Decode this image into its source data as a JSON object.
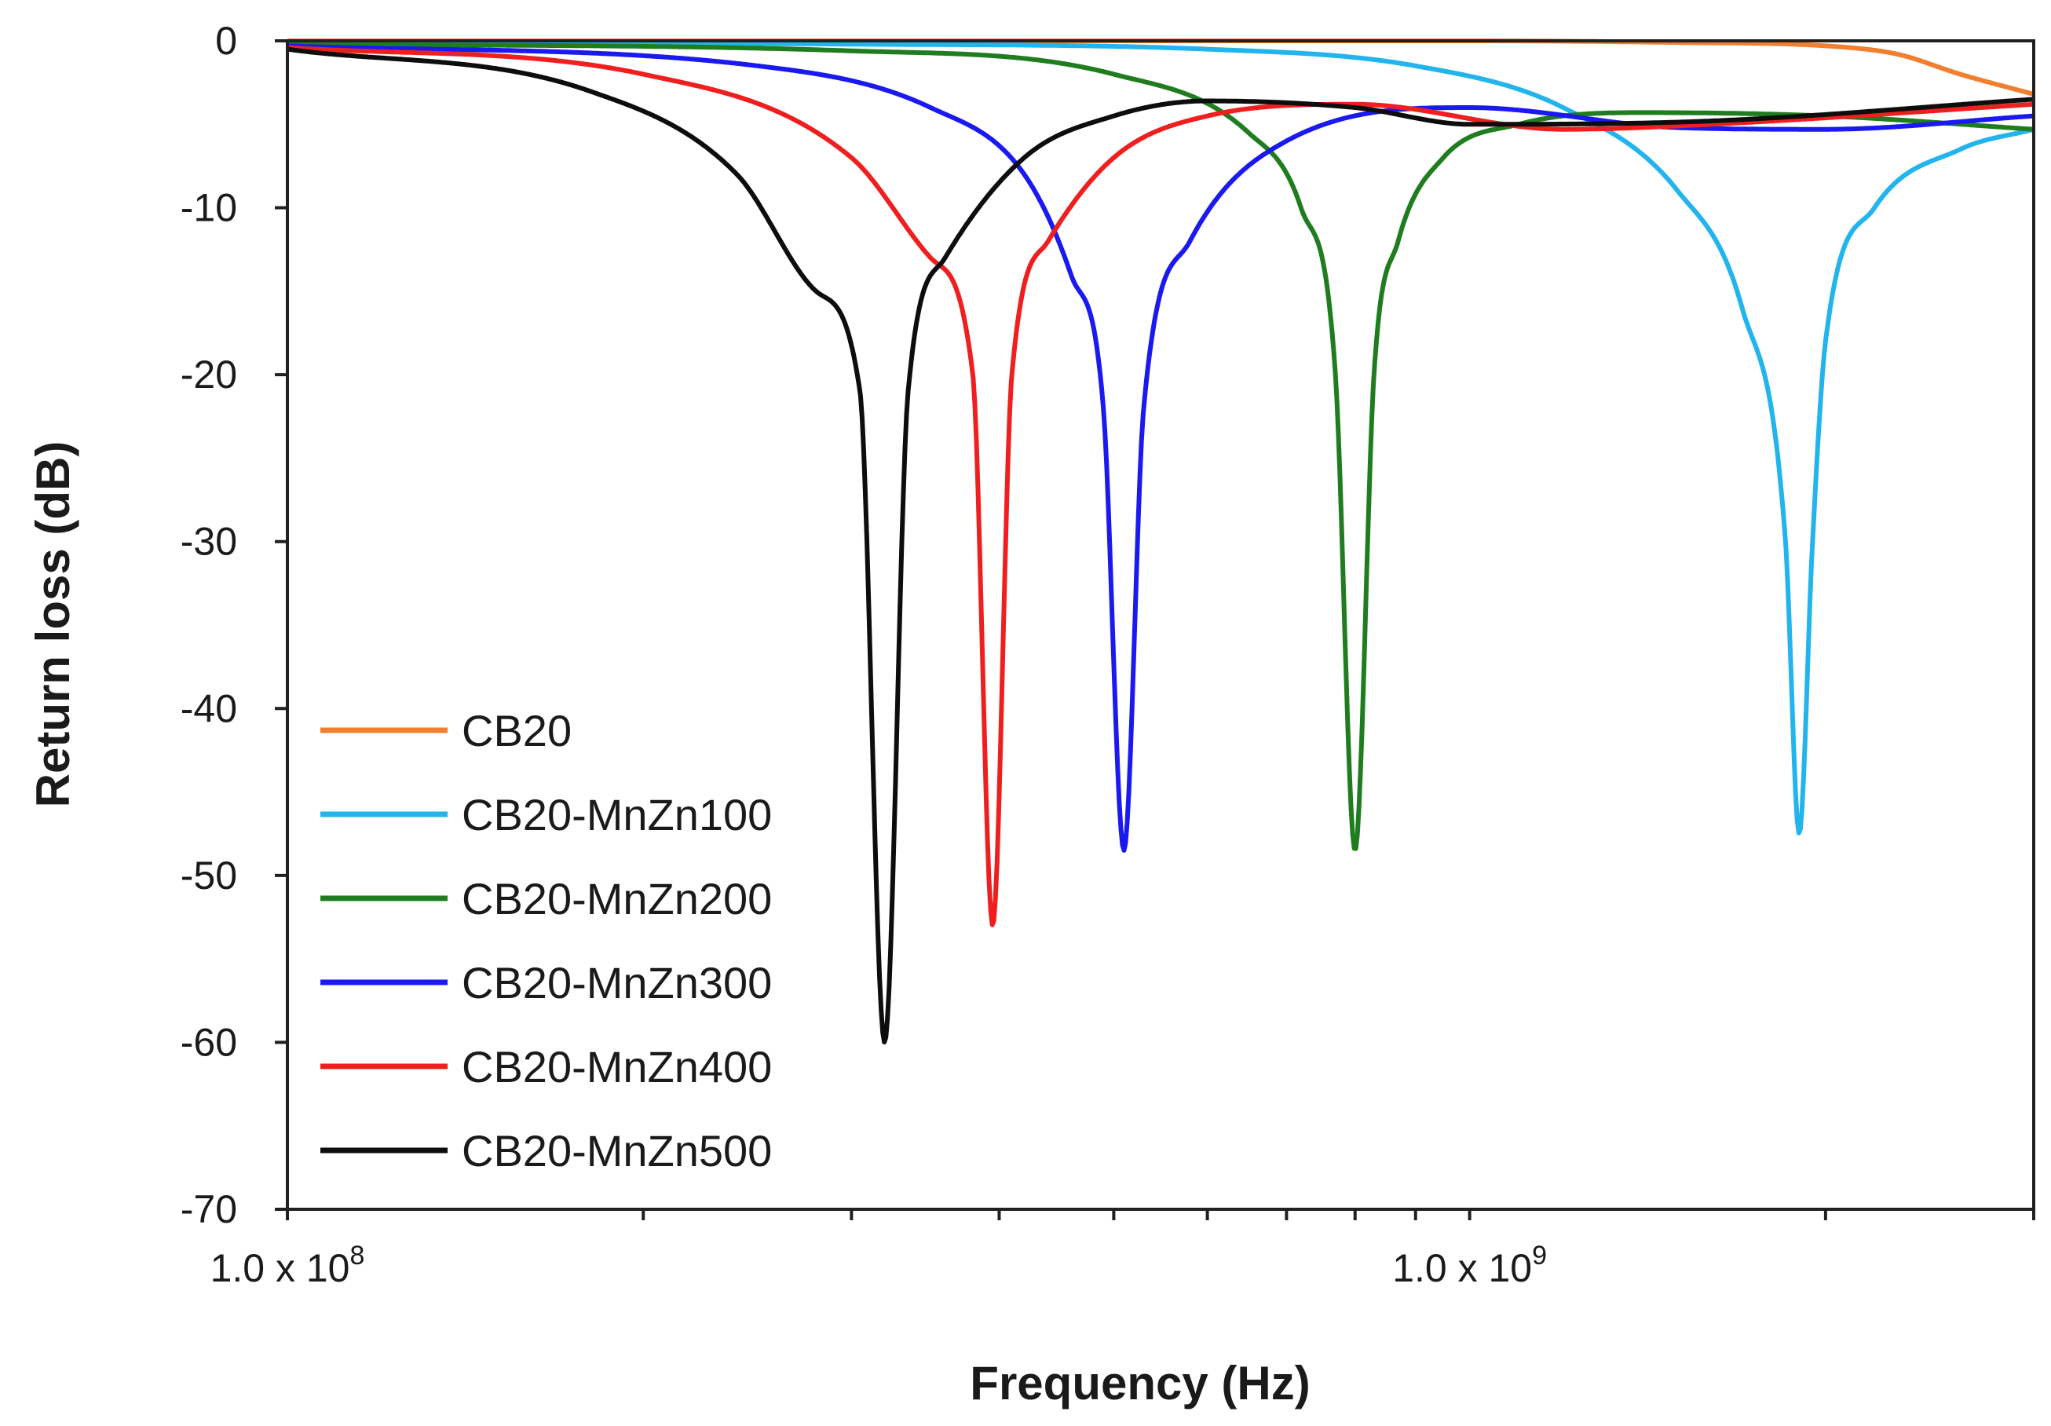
{
  "chart_data": {
    "type": "line",
    "title": "",
    "xlabel": "Frequency (Hz)",
    "ylabel": "Return loss (dB)",
    "xscale": "log",
    "xlim": [
      100000000,
      3000000000
    ],
    "ylim": [
      -70,
      0
    ],
    "yticks": [
      0,
      -10,
      -20,
      -30,
      -40,
      -50,
      -60,
      -70
    ],
    "xticks": [
      {
        "value": 100000000,
        "mantissa": "1.0 x 10",
        "exponent": "8"
      },
      {
        "value": 1000000000,
        "mantissa": "1.0 x 10",
        "exponent": "9"
      }
    ],
    "grid": false,
    "legend_position": "bottom-left",
    "series": [
      {
        "name": "CB20",
        "color": "#f08030",
        "x": [
          100000000,
          500000000,
          1000000000,
          1500000000,
          2000000000,
          2300000000,
          2600000000,
          3000000000
        ],
        "y": [
          0,
          0,
          0,
          -0.1,
          -0.3,
          -0.8,
          -2.0,
          -3.2
        ]
      },
      {
        "name": "CB20-MnZn100",
        "color": "#22b4ec",
        "x": [
          100000000,
          300000000,
          600000000,
          900000000,
          1200000000,
          1500000000,
          1700000000,
          1850000000,
          1900000000,
          1950000000,
          2000000000,
          2200000000,
          2600000000,
          3000000000
        ],
        "y": [
          -0.1,
          -0.2,
          -0.5,
          -1.5,
          -4.0,
          -9.0,
          -16.0,
          -30.0,
          -47.5,
          -30.0,
          -18.0,
          -10.0,
          -6.5,
          -5.3
        ]
      },
      {
        "name": "CB20-MnZn200",
        "color": "#1f7d1f",
        "x": [
          100000000,
          300000000,
          500000000,
          650000000,
          720000000,
          770000000,
          800000000,
          830000000,
          870000000,
          950000000,
          1100000000,
          1400000000,
          2000000000,
          3000000000
        ],
        "y": [
          -0.2,
          -0.6,
          -2.0,
          -5.5,
          -10.0,
          -20.0,
          -48.5,
          -20.0,
          -12.0,
          -7.0,
          -5.0,
          -4.3,
          -4.5,
          -5.3
        ]
      },
      {
        "name": "CB20-MnZn300",
        "color": "#1a1af0",
        "x": [
          100000000,
          250000000,
          350000000,
          420000000,
          460000000,
          490000000,
          510000000,
          530000000,
          580000000,
          700000000,
          1000000000,
          1500000000,
          2000000000,
          3000000000
        ],
        "y": [
          -0.3,
          -1.5,
          -4.0,
          -8.0,
          -14.0,
          -22.0,
          -48.5,
          -22.0,
          -12.0,
          -6.0,
          -4.0,
          -5.2,
          -5.3,
          -4.5
        ]
      },
      {
        "name": "CB20-MnZn400",
        "color": "#f01f1f",
        "x": [
          100000000,
          200000000,
          300000000,
          350000000,
          380000000,
          395000000,
          410000000,
          440000000,
          500000000,
          600000000,
          800000000,
          1200000000,
          1600000000,
          3000000000
        ],
        "y": [
          -0.4,
          -2.0,
          -7.0,
          -13.0,
          -20.0,
          -53.0,
          -20.0,
          -12.0,
          -7.0,
          -4.5,
          -3.8,
          -5.3,
          -5.0,
          -3.8
        ]
      },
      {
        "name": "CB20-MnZn500",
        "color": "#0d0d0d",
        "x": [
          100000000,
          180000000,
          240000000,
          280000000,
          305000000,
          320000000,
          335000000,
          360000000,
          420000000,
          500000000,
          600000000,
          800000000,
          1000000000,
          1600000000,
          3000000000
        ],
        "y": [
          -0.5,
          -3.0,
          -8.0,
          -15.0,
          -21.0,
          -60.0,
          -21.0,
          -13.0,
          -7.0,
          -4.5,
          -3.6,
          -4.0,
          -5.0,
          -4.8,
          -3.5
        ]
      }
    ]
  }
}
